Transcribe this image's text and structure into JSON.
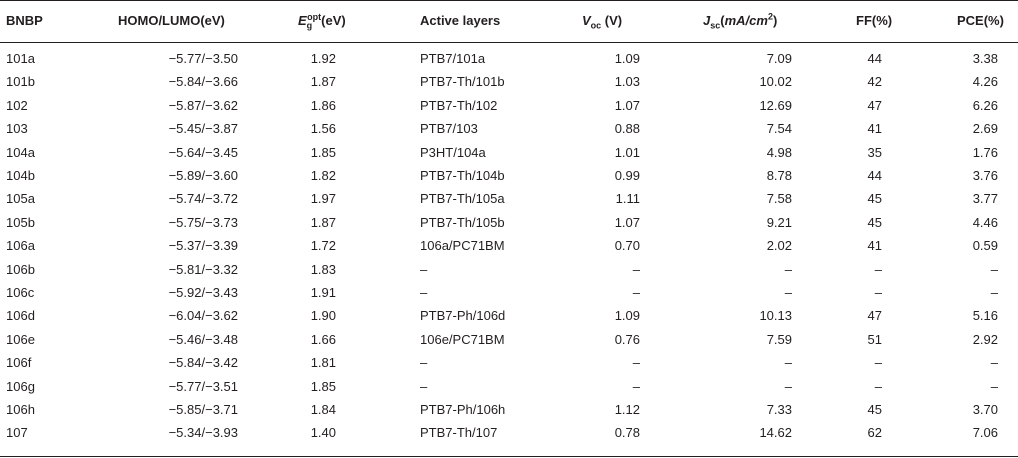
{
  "table": {
    "headers": {
      "bnbp": "BNBP",
      "homo_lumo": "HOMO/LUMO(eV)",
      "eg_main": "E",
      "eg_sup": "opt",
      "eg_sub": "g",
      "eg_unit": "(eV)",
      "active_layers": "Active layers",
      "voc_main": "V",
      "voc_sub": "oc",
      "voc_unit": " (V)",
      "jsc_main": "J",
      "jsc_sub": "sc",
      "jsc_unit_open": "(",
      "jsc_unit_italic": "mA/cm",
      "jsc_unit_sup": "2",
      "jsc_unit_close": ")",
      "ff": "FF(%)",
      "pce": "PCE(%)"
    },
    "rows": [
      {
        "bnbp": "101a",
        "homo_lumo": "−5.77/−3.50",
        "eg": "1.92",
        "active": "PTB7/101a",
        "voc": "1.09",
        "jsc": "7.09",
        "ff": "44",
        "pce": "3.38"
      },
      {
        "bnbp": "101b",
        "homo_lumo": "−5.84/−3.66",
        "eg": "1.87",
        "active": "PTB7-Th/101b",
        "voc": "1.03",
        "jsc": "10.02",
        "ff": "42",
        "pce": "4.26"
      },
      {
        "bnbp": "102",
        "homo_lumo": "−5.87/−3.62",
        "eg": "1.86",
        "active": "PTB7-Th/102",
        "voc": "1.07",
        "jsc": "12.69",
        "ff": "47",
        "pce": "6.26"
      },
      {
        "bnbp": "103",
        "homo_lumo": "−5.45/−3.87",
        "eg": "1.56",
        "active": "PTB7/103",
        "voc": "0.88",
        "jsc": "7.54",
        "ff": "41",
        "pce": "2.69"
      },
      {
        "bnbp": "104a",
        "homo_lumo": "−5.64/−3.45",
        "eg": "1.85",
        "active": "P3HT/104a",
        "voc": "1.01",
        "jsc": "4.98",
        "ff": "35",
        "pce": "1.76"
      },
      {
        "bnbp": "104b",
        "homo_lumo": "−5.89/−3.60",
        "eg": "1.82",
        "active": "PTB7-Th/104b",
        "voc": "0.99",
        "jsc": "8.78",
        "ff": "44",
        "pce": "3.76"
      },
      {
        "bnbp": "105a",
        "homo_lumo": "−5.74/−3.72",
        "eg": "1.97",
        "active": "PTB7-Th/105a",
        "voc": "1.11",
        "jsc": "7.58",
        "ff": "45",
        "pce": "3.77"
      },
      {
        "bnbp": "105b",
        "homo_lumo": "−5.75/−3.73",
        "eg": "1.87",
        "active": "PTB7-Th/105b",
        "voc": "1.07",
        "jsc": "9.21",
        "ff": "45",
        "pce": "4.46"
      },
      {
        "bnbp": "106a",
        "homo_lumo": "−5.37/−3.39",
        "eg": "1.72",
        "active": "106a/PC71BM",
        "voc": "0.70",
        "jsc": "2.02",
        "ff": "41",
        "pce": "0.59"
      },
      {
        "bnbp": "106b",
        "homo_lumo": "−5.81/−3.32",
        "eg": "1.83",
        "active": "–",
        "voc": "–",
        "jsc": "–",
        "ff": "–",
        "pce": "–"
      },
      {
        "bnbp": "106c",
        "homo_lumo": "−5.92/−3.43",
        "eg": "1.91",
        "active": "–",
        "voc": "–",
        "jsc": "–",
        "ff": "–",
        "pce": "–"
      },
      {
        "bnbp": "106d",
        "homo_lumo": "−6.04/−3.62",
        "eg": "1.90",
        "active": "PTB7-Ph/106d",
        "voc": "1.09",
        "jsc": "10.13",
        "ff": "47",
        "pce": "5.16"
      },
      {
        "bnbp": "106e",
        "homo_lumo": "−5.46/−3.48",
        "eg": "1.66",
        "active": "106e/PC71BM",
        "voc": "0.76",
        "jsc": "7.59",
        "ff": "51",
        "pce": "2.92"
      },
      {
        "bnbp": "106f",
        "homo_lumo": "−5.84/−3.42",
        "eg": "1.81",
        "active": "–",
        "voc": "–",
        "jsc": "–",
        "ff": "–",
        "pce": "–"
      },
      {
        "bnbp": "106g",
        "homo_lumo": "−5.77/−3.51",
        "eg": "1.85",
        "active": "–",
        "voc": "–",
        "jsc": "–",
        "ff": "–",
        "pce": "–"
      },
      {
        "bnbp": "106h",
        "homo_lumo": "−5.85/−3.71",
        "eg": "1.84",
        "active": "PTB7-Ph/106h",
        "voc": "1.12",
        "jsc": "7.33",
        "ff": "45",
        "pce": "3.70"
      },
      {
        "bnbp": "107",
        "homo_lumo": "−5.34/−3.93",
        "eg": "1.40",
        "active": "PTB7-Th/107",
        "voc": "0.78",
        "jsc": "14.62",
        "ff": "62",
        "pce": "7.06"
      }
    ]
  }
}
